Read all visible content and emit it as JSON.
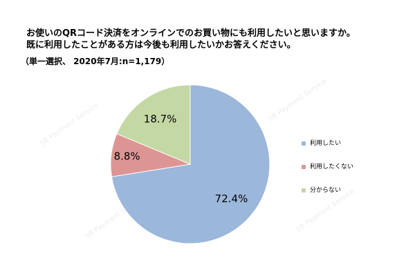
{
  "title_lines": [
    "お使いのQRコード決済をオンラインでのお買い物にも利用したいと思いますか。",
    "既に利用したことがある方は今後も利用したいかお答えください。"
  ],
  "subtitle": "（単一選択、 2020年7月:n=1,179）",
  "watermark": "SB Payment Service",
  "chart_data": {
    "type": "pie",
    "title": "お使いのQRコード決済をオンラインでのお買い物にも利用したいと思いますか。既に利用したことがある方は今後も利用したいかお答えください。",
    "subtitle": "（単一選択、 2020年7月:n=1,179）",
    "legend_position": "right",
    "slices": [
      {
        "label": "利用したい",
        "value": 72.4,
        "display": "72.4%",
        "color": "#9bb7da"
      },
      {
        "label": "利用したくない",
        "value": 8.8,
        "display": "8.8%",
        "color": "#dd9594"
      },
      {
        "label": "分からない",
        "value": 18.7,
        "display": "18.7%",
        "color": "#c4d8a4"
      }
    ]
  }
}
